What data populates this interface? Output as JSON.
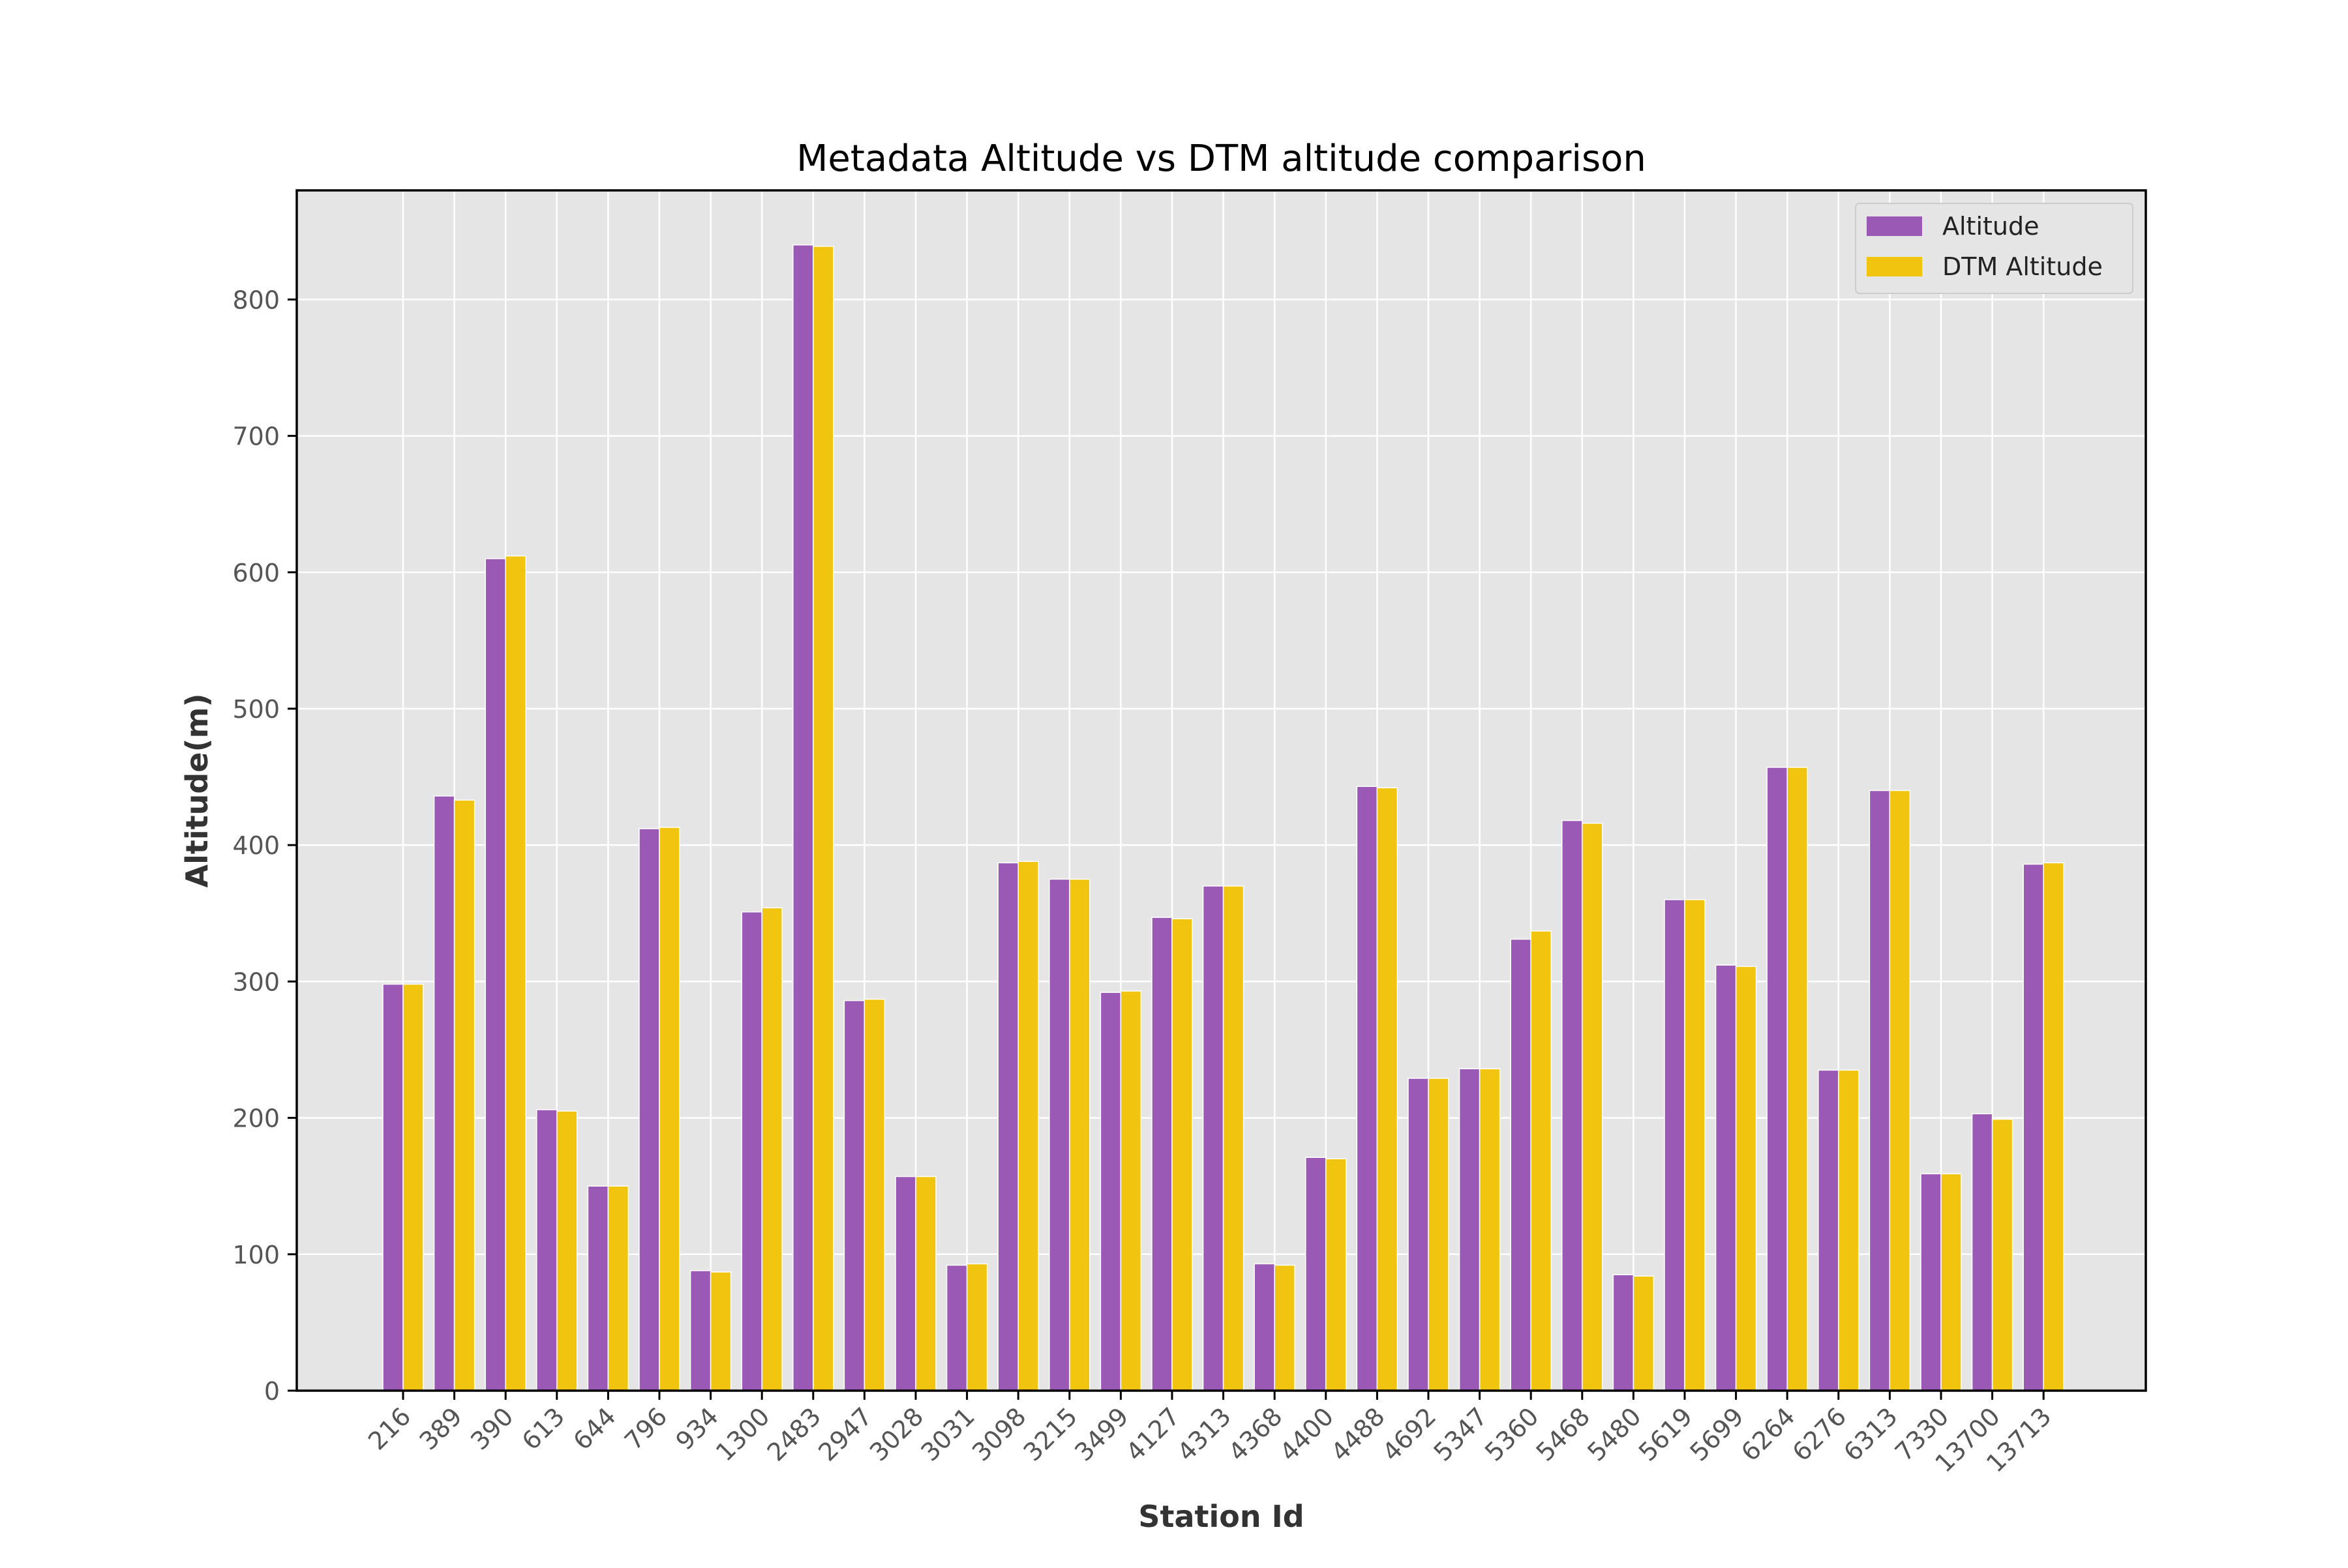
{
  "chart_data": {
    "type": "bar",
    "title": "Metadata Altitude vs DTM altitude comparison",
    "xlabel": "Station Id",
    "ylabel": "Altitude(m)",
    "ylim": [
      0,
      880
    ],
    "yticks": [
      0,
      100,
      200,
      300,
      400,
      500,
      600,
      700,
      800
    ],
    "grid": true,
    "legend_position": "top-right",
    "categories": [
      "216",
      "389",
      "390",
      "613",
      "644",
      "796",
      "934",
      "1300",
      "2483",
      "2947",
      "3028",
      "3031",
      "3098",
      "3215",
      "3499",
      "4127",
      "4313",
      "4368",
      "4400",
      "4488",
      "4692",
      "5347",
      "5360",
      "5468",
      "5480",
      "5619",
      "5699",
      "6264",
      "6276",
      "6313",
      "7330",
      "13700",
      "13713"
    ],
    "series": [
      {
        "name": "Altitude",
        "color": "#9b59b6",
        "values": [
          298,
          436,
          610,
          206,
          150,
          412,
          88,
          351,
          840,
          286,
          157,
          92,
          387,
          375,
          292,
          347,
          370,
          93,
          171,
          443,
          229,
          236,
          331,
          418,
          85,
          360,
          312,
          457,
          235,
          440,
          159,
          203,
          386
        ]
      },
      {
        "name": "DTM Altitude",
        "color": "#f1c40f",
        "values": [
          298,
          433,
          612,
          205,
          150,
          413,
          87,
          354,
          839,
          287,
          157,
          93,
          388,
          375,
          293,
          346,
          370,
          92,
          170,
          442,
          229,
          236,
          337,
          416,
          84,
          360,
          311,
          457,
          235,
          440,
          159,
          199,
          387
        ]
      }
    ]
  },
  "colors": {
    "plot_background": "#e5e5e5",
    "grid": "#ffffff",
    "frame": "#000000"
  }
}
